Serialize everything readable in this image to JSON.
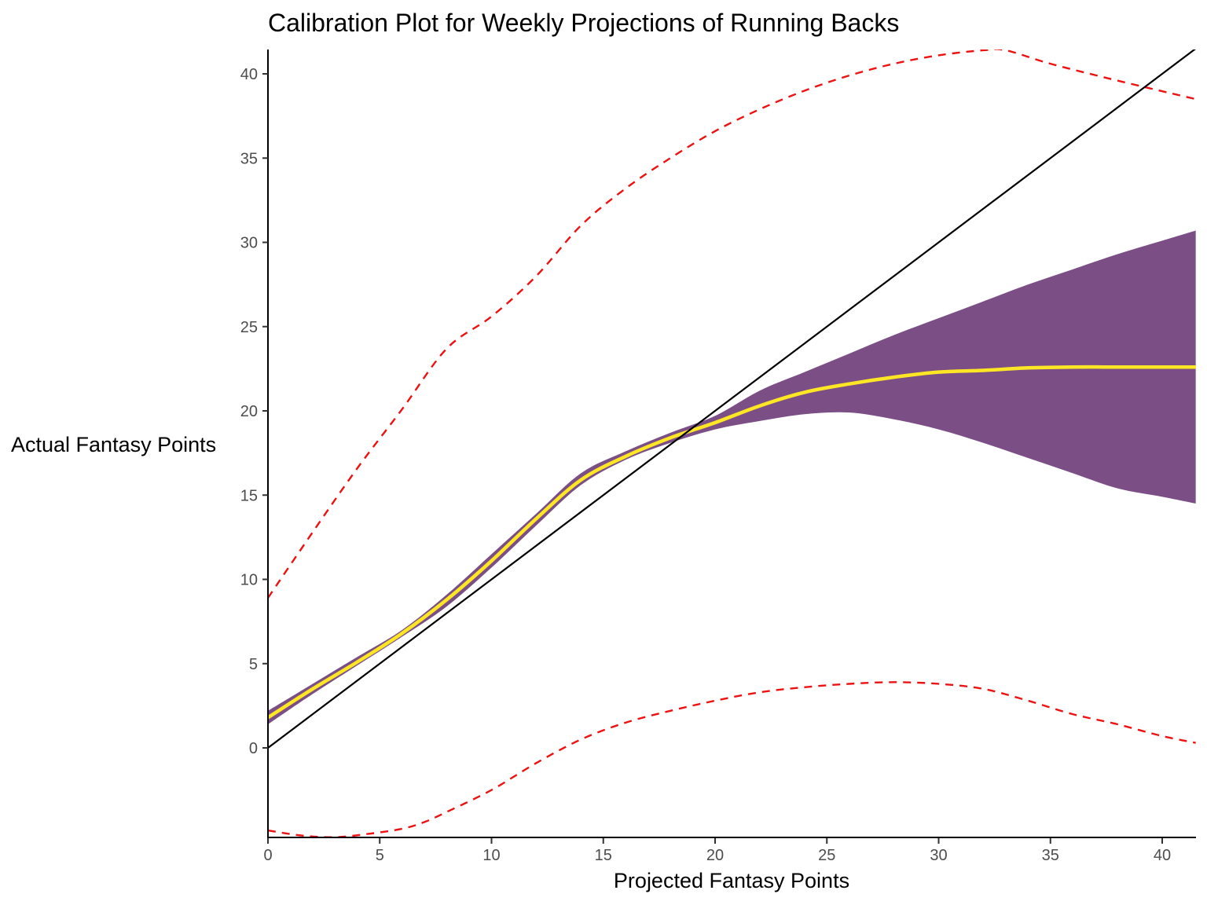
{
  "chart_data": {
    "type": "line",
    "title": "Calibration Plot for Weekly Projections of Running Backs",
    "xlabel": "Projected Fantasy Points",
    "ylabel": "Actual Fantasy Points",
    "xlim": [
      0,
      41.5
    ],
    "ylim": [
      -5.4,
      41.4
    ],
    "x_ticks": [
      0,
      5,
      10,
      15,
      20,
      25,
      30,
      35,
      40
    ],
    "y_ticks": [
      0,
      5,
      10,
      15,
      20,
      25,
      30,
      35,
      40
    ],
    "grid": false,
    "legend": "none",
    "colors": {
      "smooth": "#fde725",
      "ribbon": "#7b4f86",
      "interval": "#ee1111",
      "identity": "#000000"
    },
    "series": [
      {
        "kind": "ribbon",
        "x": [
          0,
          2,
          4,
          6,
          8,
          10,
          12,
          14,
          16,
          18,
          20,
          22,
          24,
          26,
          28,
          30,
          32,
          34,
          36,
          38,
          40,
          41.5
        ],
        "lower": [
          1.4,
          3.2,
          4.9,
          6.6,
          8.4,
          10.7,
          13.2,
          15.6,
          17.1,
          18.1,
          18.9,
          19.4,
          19.8,
          19.9,
          19.5,
          18.9,
          18.1,
          17.2,
          16.3,
          15.4,
          14.9,
          14.5
        ],
        "upper": [
          2.2,
          3.8,
          5.4,
          7.0,
          9.1,
          11.5,
          13.9,
          16.3,
          17.6,
          18.7,
          19.7,
          21.2,
          22.3,
          23.4,
          24.5,
          25.5,
          26.5,
          27.5,
          28.4,
          29.3,
          30.1,
          30.7
        ]
      },
      {
        "kind": "smooth",
        "x": [
          0,
          2,
          4,
          6,
          8,
          10,
          12,
          14,
          16,
          18,
          20,
          22,
          24,
          26,
          28,
          30,
          32,
          34,
          36,
          38,
          40,
          41.5
        ],
        "y": [
          1.8,
          3.5,
          5.1,
          6.8,
          8.8,
          11.1,
          13.6,
          15.9,
          17.3,
          18.4,
          19.3,
          20.3,
          21.1,
          21.6,
          22.0,
          22.3,
          22.4,
          22.55,
          22.6,
          22.6,
          22.6,
          22.6
        ]
      },
      {
        "kind": "interval-upper",
        "x": [
          0,
          2,
          4,
          6,
          8,
          10,
          12,
          14,
          16,
          18,
          20,
          22,
          24,
          26,
          28,
          30,
          32,
          33,
          35,
          38,
          41.5
        ],
        "y": [
          8.9,
          12.8,
          16.6,
          20.1,
          23.7,
          25.6,
          28.0,
          31.0,
          33.2,
          35.0,
          36.6,
          37.9,
          39.0,
          39.9,
          40.6,
          41.1,
          41.4,
          41.4,
          40.6,
          39.6,
          38.5
        ]
      },
      {
        "kind": "interval-lower",
        "x": [
          0,
          1.5,
          3,
          4.5,
          6,
          7,
          8,
          10,
          12,
          14,
          16,
          18,
          20,
          22,
          24,
          26,
          28,
          30,
          32,
          34,
          36,
          38,
          40,
          41.5
        ],
        "y": [
          -4.9,
          -5.2,
          -5.3,
          -5.1,
          -4.8,
          -4.4,
          -3.8,
          -2.5,
          -0.9,
          0.5,
          1.5,
          2.2,
          2.8,
          3.3,
          3.6,
          3.8,
          3.9,
          3.8,
          3.5,
          2.8,
          2.0,
          1.4,
          0.7,
          0.3
        ]
      },
      {
        "kind": "identity",
        "x": [
          0,
          41.5
        ],
        "y": [
          0,
          41.5
        ]
      }
    ]
  }
}
